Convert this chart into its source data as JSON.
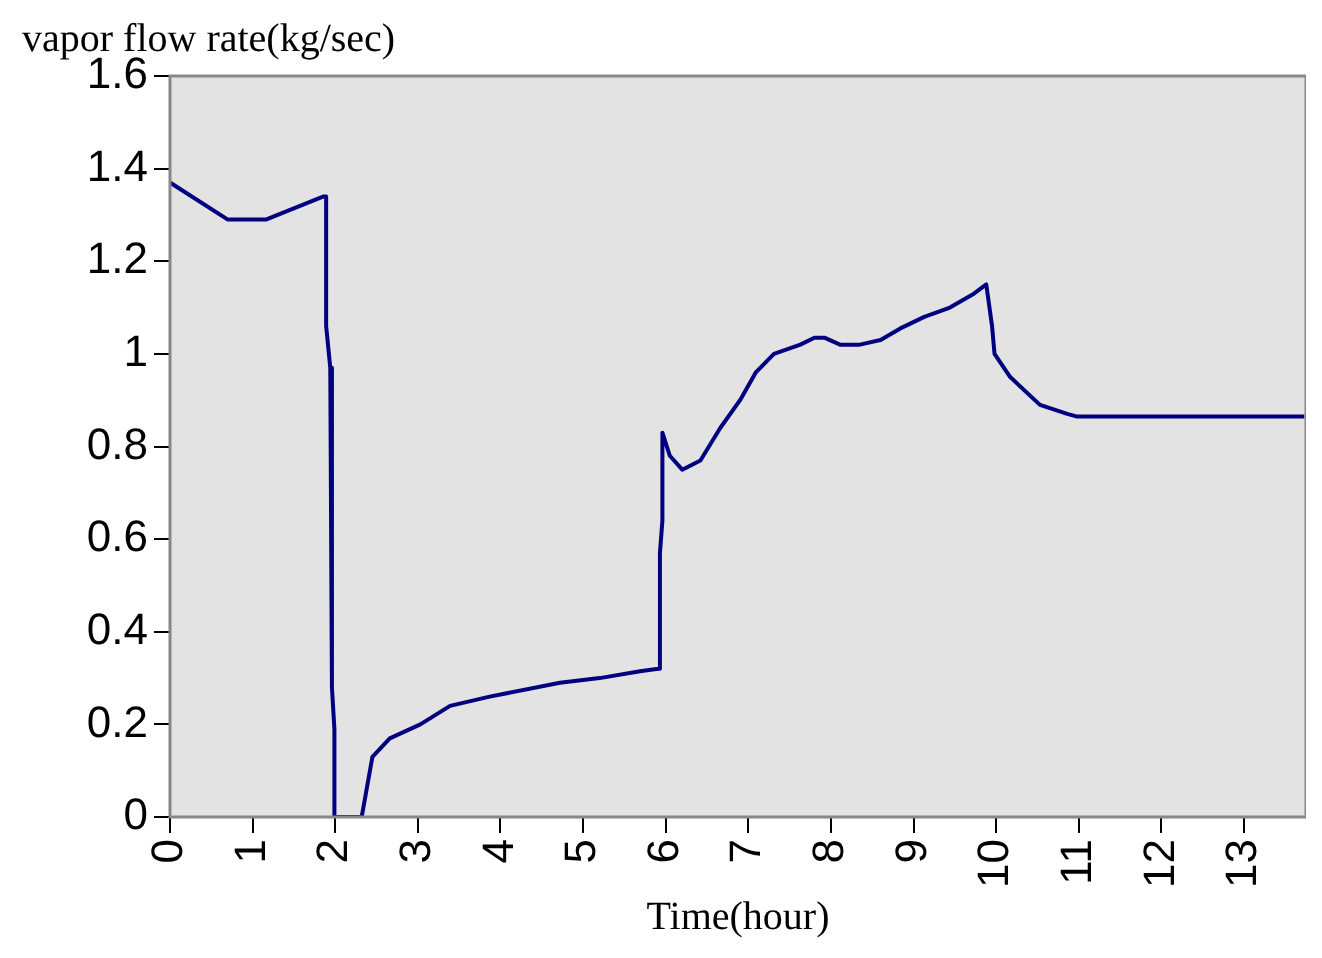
{
  "chart_data": {
    "type": "line",
    "ylabel": "vapor flow rate(kg/sec)",
    "xlabel": "Time(hour)",
    "xlim": [
      0,
      13.75
    ],
    "xticks": [
      0,
      1,
      2,
      3,
      4,
      5,
      6,
      7,
      8,
      9,
      10,
      11,
      12,
      13
    ],
    "ylim": [
      0,
      1.6
    ],
    "yticks": [
      0,
      0.2,
      0.4,
      0.6,
      0.8,
      1,
      1.2,
      1.4,
      1.6
    ],
    "grid": false,
    "legend": false,
    "marker": "none",
    "line_style": "solid",
    "series": [
      {
        "color": "#000080",
        "x": [
          0,
          0.7,
          1.16,
          1.86,
          1.89,
          1.89,
          1.94,
          1.96,
          1.99,
          1.99,
          2.32,
          2.37,
          2.45,
          2.66,
          3.03,
          3.39,
          3.87,
          4.72,
          5.2,
          5.69,
          5.91,
          5.93,
          5.96,
          5.96,
          6.05,
          6.2,
          6.42,
          6.66,
          6.9,
          7.09,
          7.31,
          7.63,
          7.8,
          7.92,
          8.11,
          8.35,
          8.6,
          8.84,
          9.13,
          9.44,
          9.73,
          9.88,
          9.95,
          9.98,
          10.17,
          10.53,
          10.87,
          10.97,
          13.73
        ],
        "values": [
          1.37,
          1.29,
          1.29,
          1.34,
          1.34,
          1.06,
          0.97,
          0.28,
          0.19,
          0,
          0,
          0.05,
          0.13,
          0.17,
          0.2,
          0.24,
          0.26,
          0.29,
          0.3,
          0.315,
          0.32,
          0.57,
          0.64,
          0.83,
          0.78,
          0.75,
          0.77,
          0.84,
          0.9,
          0.96,
          1,
          1.02,
          1.035,
          1.035,
          1.02,
          1.02,
          1.03,
          1.055,
          1.08,
          1.1,
          1.13,
          1.15,
          1.06,
          1,
          0.95,
          0.89,
          0.87,
          0.865,
          0.865
        ]
      }
    ]
  }
}
